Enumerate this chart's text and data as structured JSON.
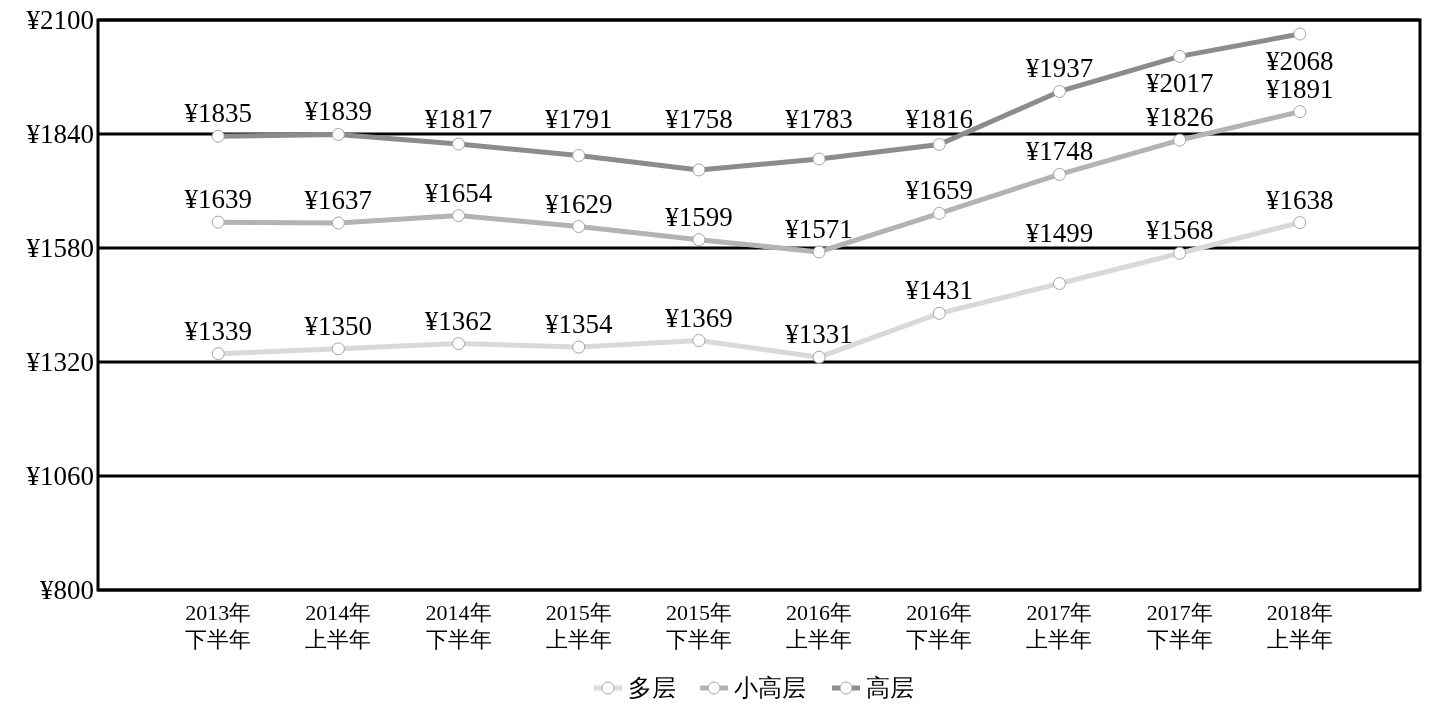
{
  "chart_data": {
    "type": "line",
    "categories": [
      "2013年下半年",
      "2014年上半年",
      "2014年下半年",
      "2015年上半年",
      "2015年下半年",
      "2016年上半年",
      "2016年下半年",
      "2017年上半年",
      "2017年下半年",
      "2018年上半年"
    ],
    "series": [
      {
        "name": "多层",
        "color": "#d9d9d9",
        "values": [
          1339,
          1350,
          1362,
          1354,
          1369,
          1331,
          1431,
          1499,
          1568,
          1638
        ],
        "value_labels": [
          "¥1339",
          "¥1350",
          "¥1362",
          "¥1354",
          "¥1369",
          "¥1331",
          "¥1431",
          "¥1499",
          "¥1568",
          "¥1638"
        ]
      },
      {
        "name": "小高层",
        "color": "#b3b3b3",
        "values": [
          1639,
          1637,
          1654,
          1629,
          1599,
          1571,
          1659,
          1748,
          1826,
          1891
        ],
        "value_labels": [
          "¥1639",
          "¥1637",
          "¥1654",
          "¥1629",
          "¥1599",
          "¥1571",
          "¥1659",
          "¥1748",
          "¥1826",
          "¥1891"
        ]
      },
      {
        "name": "高层",
        "color": "#8c8c8c",
        "values": [
          1835,
          1839,
          1817,
          1791,
          1758,
          1783,
          1816,
          1937,
          2017,
          2068
        ],
        "value_labels": [
          "¥1835",
          "¥1839",
          "¥1817",
          "¥1791",
          "¥1758",
          "¥1783",
          "¥1816",
          "¥1937",
          "¥2017",
          "¥2068"
        ]
      }
    ],
    "ylim": [
      800,
      2100
    ],
    "yticks": [
      {
        "value": 800,
        "label": "¥800"
      },
      {
        "value": 1060,
        "label": "¥1060"
      },
      {
        "value": 1320,
        "label": "¥1320"
      },
      {
        "value": 1580,
        "label": "¥1580"
      },
      {
        "value": 1840,
        "label": "¥1840"
      },
      {
        "value": 2100,
        "label": "¥2100"
      }
    ],
    "grid": "y",
    "legend": "bottom",
    "marker": "circle",
    "line_style": "solid"
  }
}
